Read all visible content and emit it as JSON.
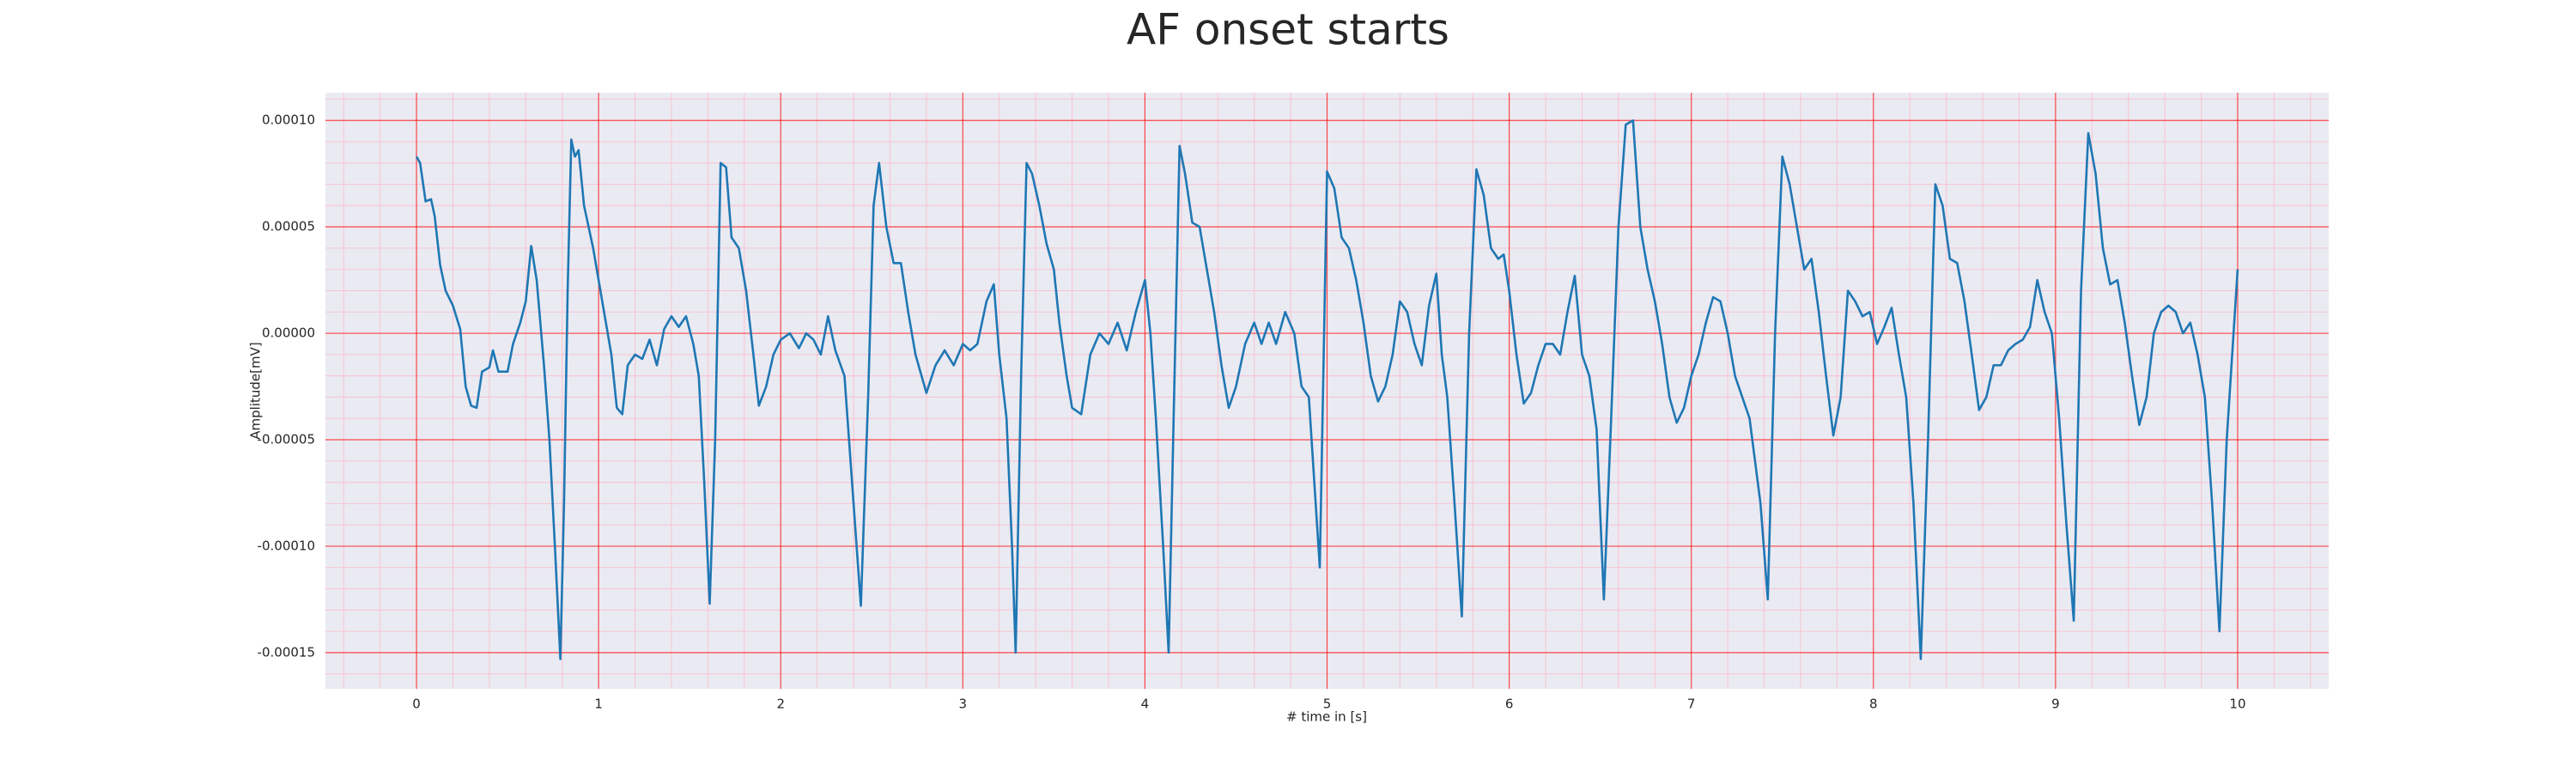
{
  "chart_data": {
    "type": "line",
    "title": "AF onset starts",
    "x_label": "# time in [s]",
    "y_label": "Amplitude[mV]",
    "x": [
      0,
      0.02,
      0.05,
      0.08,
      0.1,
      0.13,
      0.16,
      0.2,
      0.24,
      0.27,
      0.3,
      0.33,
      0.36,
      0.4,
      0.42,
      0.45,
      0.5,
      0.53,
      0.57,
      0.6,
      0.63,
      0.66,
      0.7,
      0.73,
      0.76,
      0.79,
      0.81,
      0.83,
      0.85,
      0.87,
      0.89,
      0.92,
      0.97,
      1.02,
      1.07,
      1.1,
      1.13,
      1.16,
      1.2,
      1.24,
      1.28,
      1.32,
      1.36,
      1.4,
      1.44,
      1.48,
      1.52,
      1.55,
      1.58,
      1.61,
      1.64,
      1.67,
      1.7,
      1.73,
      1.77,
      1.81,
      1.85,
      1.88,
      1.92,
      1.96,
      2,
      2.05,
      2.1,
      2.14,
      2.18,
      2.22,
      2.26,
      2.3,
      2.35,
      2.4,
      2.44,
      2.48,
      2.51,
      2.54,
      2.58,
      2.62,
      2.66,
      2.7,
      2.74,
      2.8,
      2.85,
      2.9,
      2.95,
      3,
      3.04,
      3.08,
      3.13,
      3.17,
      3.2,
      3.24,
      3.27,
      3.29,
      3.32,
      3.35,
      3.38,
      3.42,
      3.46,
      3.5,
      3.53,
      3.57,
      3.6,
      3.65,
      3.7,
      3.75,
      3.8,
      3.85,
      3.9,
      3.95,
      4,
      4.03,
      4.06,
      4.1,
      4.13,
      4.16,
      4.19,
      4.22,
      4.26,
      4.3,
      4.34,
      4.38,
      4.42,
      4.46,
      4.5,
      4.55,
      4.6,
      4.64,
      4.68,
      4.72,
      4.77,
      4.82,
      4.86,
      4.9,
      4.93,
      4.96,
      5,
      5.04,
      5.08,
      5.12,
      5.16,
      5.2,
      5.24,
      5.28,
      5.32,
      5.36,
      5.4,
      5.44,
      5.48,
      5.52,
      5.56,
      5.6,
      5.63,
      5.66,
      5.7,
      5.74,
      5.78,
      5.82,
      5.86,
      5.9,
      5.94,
      5.97,
      6,
      6.04,
      6.08,
      6.12,
      6.16,
      6.2,
      6.24,
      6.28,
      6.32,
      6.36,
      6.4,
      6.44,
      6.48,
      6.52,
      6.56,
      6.6,
      6.64,
      6.68,
      6.72,
      6.76,
      6.8,
      6.84,
      6.88,
      6.92,
      6.96,
      7,
      7.04,
      7.08,
      7.12,
      7.16,
      7.2,
      7.24,
      7.28,
      7.32,
      7.38,
      7.42,
      7.46,
      7.5,
      7.54,
      7.58,
      7.62,
      7.66,
      7.7,
      7.74,
      7.78,
      7.82,
      7.86,
      7.9,
      7.94,
      7.98,
      8.02,
      8.06,
      8.1,
      8.14,
      8.18,
      8.22,
      8.26,
      8.3,
      8.34,
      8.38,
      8.42,
      8.46,
      8.5,
      8.54,
      8.58,
      8.62,
      8.66,
      8.7,
      8.74,
      8.78,
      8.82,
      8.86,
      8.9,
      8.94,
      8.98,
      9.02,
      9.06,
      9.1,
      9.14,
      9.18,
      9.22,
      9.26,
      9.3,
      9.34,
      9.38,
      9.42,
      9.46,
      9.5,
      9.54,
      9.58,
      9.62,
      9.66,
      9.7,
      9.74,
      9.78,
      9.82,
      9.86,
      9.9,
      9.94,
      10
    ],
    "series": [
      {
        "name": "Amplitude",
        "color": "#1f77b4",
        "values": [
          8.3e-05,
          8e-05,
          6.2e-05,
          6.3e-05,
          5.5e-05,
          3.2e-05,
          2e-05,
          1.3e-05,
          2e-06,
          -2.5e-05,
          -3.4e-05,
          -3.5e-05,
          -1.8e-05,
          -1.6e-05,
          -8e-06,
          -1.8e-05,
          -1.8e-05,
          -5e-06,
          5e-06,
          1.5e-05,
          4.1e-05,
          2.5e-05,
          -1.5e-05,
          -5e-05,
          -0.0001,
          -0.000153,
          -8e-05,
          2e-05,
          9.1e-05,
          8.3e-05,
          8.6e-05,
          6e-05,
          4e-05,
          1.5e-05,
          -1e-05,
          -3.5e-05,
          -3.8e-05,
          -1.5e-05,
          -1e-05,
          -1.2e-05,
          -3e-06,
          -1.5e-05,
          2e-06,
          8e-06,
          3e-06,
          8e-06,
          -5e-06,
          -2e-05,
          -7e-05,
          -0.000127,
          -5e-05,
          8e-05,
          7.8e-05,
          4.5e-05,
          4e-05,
          2e-05,
          -1e-05,
          -3.4e-05,
          -2.5e-05,
          -1e-05,
          -3e-06,
          0,
          -7e-06,
          0,
          -3e-06,
          -1e-05,
          8e-06,
          -8e-06,
          -2e-05,
          -8e-05,
          -0.000128,
          -3e-05,
          6e-05,
          8e-05,
          5e-05,
          3.3e-05,
          3.3e-05,
          1e-05,
          -1e-05,
          -2.8e-05,
          -1.5e-05,
          -8e-06,
          -1.5e-05,
          -5e-06,
          -8e-06,
          -5e-06,
          1.5e-05,
          2.3e-05,
          -1e-05,
          -4e-05,
          -0.0001,
          -0.00015,
          -2e-05,
          8e-05,
          7.5e-05,
          6e-05,
          4.2e-05,
          3e-05,
          5e-06,
          -2e-05,
          -3.5e-05,
          -3.8e-05,
          -1e-05,
          0,
          -5e-06,
          5e-06,
          -8e-06,
          1e-05,
          2.5e-05,
          0,
          -4e-05,
          -0.0001,
          -0.00015,
          -3e-05,
          8.8e-05,
          7.5e-05,
          5.2e-05,
          5e-05,
          3e-05,
          1e-05,
          -1.5e-05,
          -3.5e-05,
          -2.5e-05,
          -5e-06,
          5e-06,
          -5e-06,
          5e-06,
          -5e-06,
          1e-05,
          0,
          -2.5e-05,
          -3e-05,
          -7e-05,
          -0.00011,
          7.6e-05,
          6.8e-05,
          4.5e-05,
          4e-05,
          2.5e-05,
          5e-06,
          -2e-05,
          -3.2e-05,
          -2.5e-05,
          -1e-05,
          1.5e-05,
          1e-05,
          -5e-06,
          -1.5e-05,
          1.3e-05,
          2.8e-05,
          -1e-05,
          -3e-05,
          -8e-05,
          -0.000133,
          0,
          7.7e-05,
          6.5e-05,
          4e-05,
          3.5e-05,
          3.7e-05,
          2e-05,
          -1e-05,
          -3.3e-05,
          -2.8e-05,
          -1.5e-05,
          -5e-06,
          -5e-06,
          -1e-05,
          1e-05,
          2.7e-05,
          -1e-05,
          -2e-05,
          -4.5e-05,
          -0.000125,
          -4e-05,
          5e-05,
          9.8e-05,
          0.0001,
          5e-05,
          3e-05,
          1.5e-05,
          -5e-06,
          -3e-05,
          -4.2e-05,
          -3.5e-05,
          -2e-05,
          -1e-05,
          5e-06,
          1.7e-05,
          1.5e-05,
          0,
          -2e-05,
          -3e-05,
          -4e-05,
          -8e-05,
          -0.000125,
          0,
          8.3e-05,
          7e-05,
          5e-05,
          3e-05,
          3.5e-05,
          1e-05,
          -2e-05,
          -4.8e-05,
          -3e-05,
          2e-05,
          1.5e-05,
          8e-06,
          1e-05,
          -5e-06,
          3e-06,
          1.2e-05,
          -1e-05,
          -3e-05,
          -8e-05,
          -0.000153,
          -5e-05,
          7e-05,
          6e-05,
          3.5e-05,
          3.3e-05,
          1.5e-05,
          -1e-05,
          -3.6e-05,
          -3e-05,
          -1.5e-05,
          -1.5e-05,
          -8e-06,
          -5e-06,
          -3e-06,
          3e-06,
          2.5e-05,
          1e-05,
          0,
          -4e-05,
          -9e-05,
          -0.000135,
          2e-05,
          9.4e-05,
          7.5e-05,
          4e-05,
          2.3e-05,
          2.5e-05,
          5e-06,
          -2e-05,
          -4.3e-05,
          -3e-05,
          0,
          1e-05,
          1.3e-05,
          1e-05,
          0,
          5e-06,
          -1e-05,
          -3e-05,
          -8e-05,
          -0.00014,
          -5e-05,
          3e-05
        ]
      }
    ],
    "xlim": [
      -0.5,
      10.5
    ],
    "xticks": [
      0,
      1,
      2,
      3,
      4,
      5,
      6,
      7,
      8,
      9,
      10
    ],
    "ylim": [
      -0.000167,
      0.000113
    ],
    "yticks": [
      {
        "value": -0.00015,
        "label": "-0.00015"
      },
      {
        "value": -0.0001,
        "label": "-0.00010"
      },
      {
        "value": -5e-05,
        "label": "-0.00005"
      },
      {
        "value": 0,
        "label": "0.00000"
      },
      {
        "value": 5e-05,
        "label": "0.00005"
      },
      {
        "value": 0.0001,
        "label": "0.00010"
      }
    ],
    "grid": true,
    "grid_color": "#ff0000",
    "minor_grid": true,
    "minor_grid_color": "#ffb3c0",
    "background": "#eaeaf2"
  }
}
